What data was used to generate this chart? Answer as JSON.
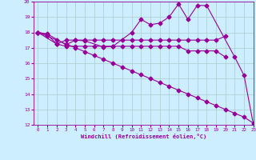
{
  "series_zigzag_x": [
    0,
    1,
    3,
    4,
    5,
    7,
    8,
    10,
    11,
    12,
    13,
    14,
    15,
    16,
    17,
    18,
    21,
    22,
    23
  ],
  "series_zigzag_y": [
    18.0,
    17.9,
    17.2,
    17.5,
    17.45,
    17.05,
    17.1,
    18.0,
    18.85,
    18.5,
    18.6,
    19.0,
    19.85,
    18.85,
    19.75,
    19.75,
    16.4,
    15.2,
    12.0
  ],
  "series_flat1_x": [
    0,
    1,
    2,
    3,
    4,
    5,
    6,
    7,
    8,
    9,
    10,
    11,
    12,
    13,
    14,
    15,
    16,
    17,
    18,
    19,
    20
  ],
  "series_flat1_y": [
    18.0,
    17.85,
    17.25,
    17.5,
    17.5,
    17.5,
    17.5,
    17.5,
    17.5,
    17.5,
    17.5,
    17.5,
    17.5,
    17.5,
    17.5,
    17.5,
    17.5,
    17.5,
    17.5,
    17.5,
    17.75
  ],
  "series_flat2_x": [
    0,
    2,
    3,
    4,
    5,
    6,
    7,
    8,
    9,
    10,
    11,
    12,
    13,
    14,
    15,
    16,
    17,
    18,
    19,
    20
  ],
  "series_flat2_y": [
    18.0,
    17.25,
    17.1,
    17.1,
    17.1,
    17.1,
    17.1,
    17.1,
    17.1,
    17.1,
    17.1,
    17.1,
    17.1,
    17.1,
    17.1,
    16.8,
    16.8,
    16.8,
    16.8,
    16.4
  ],
  "series_diag_x": [
    0,
    1,
    2,
    3,
    4,
    5,
    6,
    7,
    8,
    9,
    10,
    11,
    12,
    13,
    14,
    15,
    16,
    17,
    18,
    19,
    20,
    21,
    22,
    23
  ],
  "series_diag_y": [
    18.0,
    17.75,
    17.5,
    17.25,
    17.0,
    16.75,
    16.5,
    16.25,
    16.0,
    15.75,
    15.5,
    15.25,
    15.0,
    14.75,
    14.5,
    14.25,
    14.0,
    13.75,
    13.5,
    13.25,
    13.0,
    12.75,
    12.5,
    12.1
  ],
  "color": "#990099",
  "bg_color": "#cceeff",
  "grid_color": "#aacccc",
  "xlabel": "Windchill (Refroidissement éolien,°C)",
  "ylim": [
    12,
    20
  ],
  "xlim": [
    -0.5,
    23
  ],
  "yticks": [
    12,
    13,
    14,
    15,
    16,
    17,
    18,
    19,
    20
  ],
  "xticks": [
    0,
    1,
    2,
    3,
    4,
    5,
    6,
    7,
    8,
    9,
    10,
    11,
    12,
    13,
    14,
    15,
    16,
    17,
    18,
    19,
    20,
    21,
    22,
    23
  ]
}
